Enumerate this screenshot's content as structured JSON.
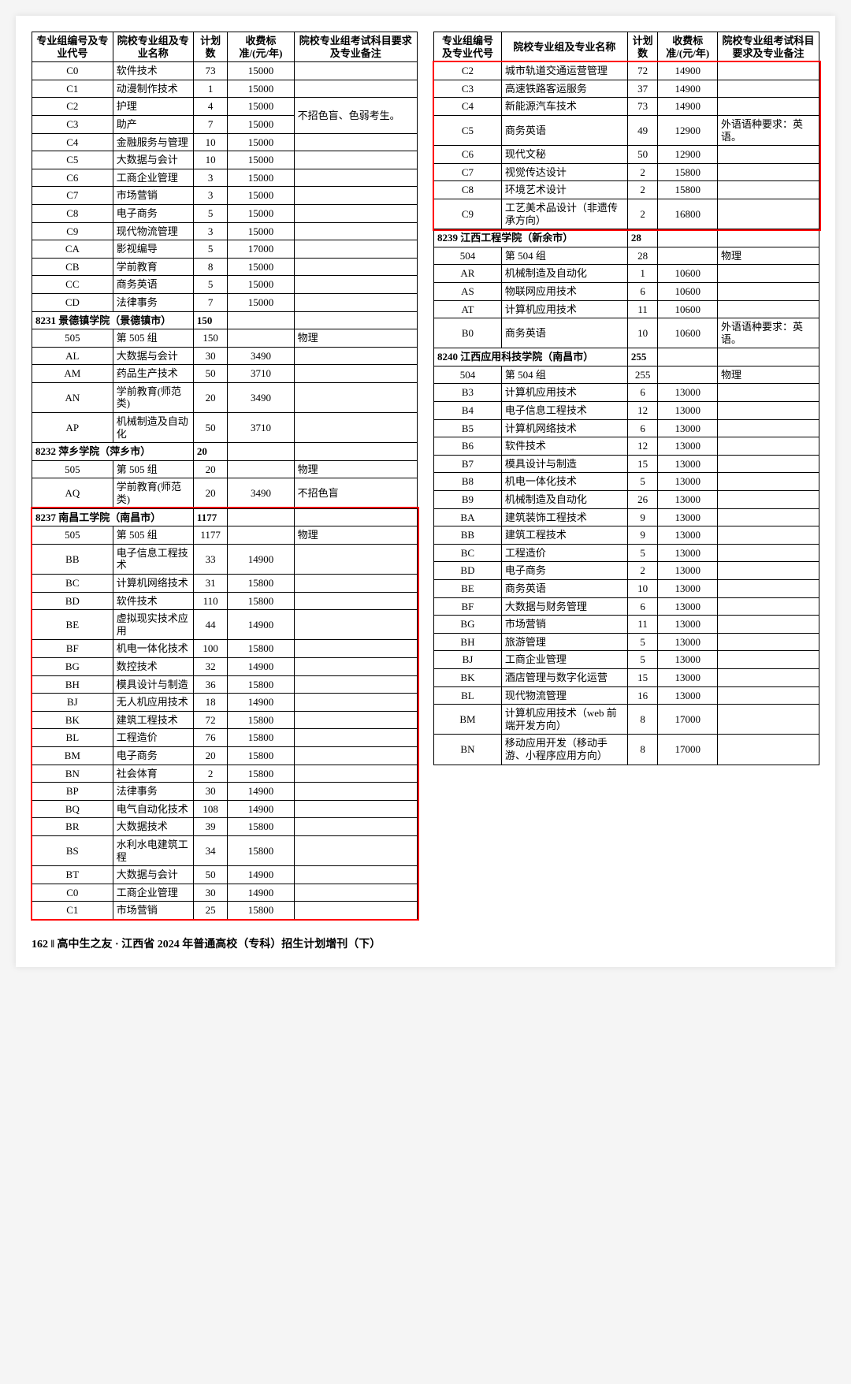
{
  "headers": {
    "c1": "专业组编号及专业代号",
    "c2": "院校专业组及专业名称",
    "c3": "计划数",
    "c4": "收费标准/(元/年)",
    "c5": "院校专业组考试科目要求及专业备注"
  },
  "footer": "162  ‖ 高中生之友 · 江西省 2024 年普通高校（专科）招生计划增刊（下）",
  "noteMerged": "不招色盲、色弱考生。",
  "leftRows": [
    {
      "code": "C0",
      "name": "软件技术",
      "plan": "73",
      "fee": "15000",
      "note": ""
    },
    {
      "code": "C1",
      "name": "动漫制作技术",
      "plan": "1",
      "fee": "15000",
      "note": ""
    },
    {
      "code": "C2",
      "name": "护理",
      "plan": "4",
      "fee": "15000",
      "note": "",
      "merge": "start"
    },
    {
      "code": "C3",
      "name": "助产",
      "plan": "7",
      "fee": "15000",
      "note": "",
      "merge": "end"
    },
    {
      "code": "C4",
      "name": "金融服务与管理",
      "plan": "10",
      "fee": "15000",
      "note": ""
    },
    {
      "code": "C5",
      "name": "大数据与会计",
      "plan": "10",
      "fee": "15000",
      "note": ""
    },
    {
      "code": "C6",
      "name": "工商企业管理",
      "plan": "3",
      "fee": "15000",
      "note": ""
    },
    {
      "code": "C7",
      "name": "市场营销",
      "plan": "3",
      "fee": "15000",
      "note": ""
    },
    {
      "code": "C8",
      "name": "电子商务",
      "plan": "5",
      "fee": "15000",
      "note": ""
    },
    {
      "code": "C9",
      "name": "现代物流管理",
      "plan": "3",
      "fee": "15000",
      "note": ""
    },
    {
      "code": "CA",
      "name": "影视编导",
      "plan": "5",
      "fee": "17000",
      "note": ""
    },
    {
      "code": "CB",
      "name": "学前教育",
      "plan": "8",
      "fee": "15000",
      "note": ""
    },
    {
      "code": "CC",
      "name": "商务英语",
      "plan": "5",
      "fee": "15000",
      "note": ""
    },
    {
      "code": "CD",
      "name": "法律事务",
      "plan": "7",
      "fee": "15000",
      "note": ""
    },
    {
      "school": "8231 景德镇学院（景德镇市）",
      "plan": "150"
    },
    {
      "code": "505",
      "name": "第 505 组",
      "plan": "150",
      "fee": "",
      "note": "物理"
    },
    {
      "code": "AL",
      "name": "大数据与会计",
      "plan": "30",
      "fee": "3490",
      "note": ""
    },
    {
      "code": "AM",
      "name": "药品生产技术",
      "plan": "50",
      "fee": "3710",
      "note": ""
    },
    {
      "code": "AN",
      "name": "学前教育(师范类)",
      "plan": "20",
      "fee": "3490",
      "note": ""
    },
    {
      "code": "AP",
      "name": "机械制造及自动化",
      "plan": "50",
      "fee": "3710",
      "note": ""
    },
    {
      "school": "8232 萍乡学院（萍乡市）",
      "plan": "20"
    },
    {
      "code": "505",
      "name": "第 505 组",
      "plan": "20",
      "fee": "",
      "note": "物理"
    },
    {
      "code": "AQ",
      "name": "学前教育(师范类)",
      "plan": "20",
      "fee": "3490",
      "note": "不招色盲"
    },
    {
      "school": "8237 南昌工学院（南昌市）",
      "plan": "1177",
      "hl": true
    },
    {
      "code": "505",
      "name": "第 505 组",
      "plan": "1177",
      "fee": "",
      "note": "物理",
      "hl": true
    },
    {
      "code": "BB",
      "name": "电子信息工程技术",
      "plan": "33",
      "fee": "14900",
      "note": "",
      "hl": true
    },
    {
      "code": "BC",
      "name": "计算机网络技术",
      "plan": "31",
      "fee": "15800",
      "note": "",
      "hl": true
    },
    {
      "code": "BD",
      "name": "软件技术",
      "plan": "110",
      "fee": "15800",
      "note": "",
      "hl": true
    },
    {
      "code": "BE",
      "name": "虚拟现实技术应用",
      "plan": "44",
      "fee": "14900",
      "note": "",
      "hl": true
    },
    {
      "code": "BF",
      "name": "机电一体化技术",
      "plan": "100",
      "fee": "15800",
      "note": "",
      "hl": true
    },
    {
      "code": "BG",
      "name": "数控技术",
      "plan": "32",
      "fee": "14900",
      "note": "",
      "hl": true
    },
    {
      "code": "BH",
      "name": "模具设计与制造",
      "plan": "36",
      "fee": "15800",
      "note": "",
      "hl": true
    },
    {
      "code": "BJ",
      "name": "无人机应用技术",
      "plan": "18",
      "fee": "14900",
      "note": "",
      "hl": true
    },
    {
      "code": "BK",
      "name": "建筑工程技术",
      "plan": "72",
      "fee": "15800",
      "note": "",
      "hl": true
    },
    {
      "code": "BL",
      "name": "工程造价",
      "plan": "76",
      "fee": "15800",
      "note": "",
      "hl": true
    },
    {
      "code": "BM",
      "name": "电子商务",
      "plan": "20",
      "fee": "15800",
      "note": "",
      "hl": true
    },
    {
      "code": "BN",
      "name": "社会体育",
      "plan": "2",
      "fee": "15800",
      "note": "",
      "hl": true
    },
    {
      "code": "BP",
      "name": "法律事务",
      "plan": "30",
      "fee": "14900",
      "note": "",
      "hl": true
    },
    {
      "code": "BQ",
      "name": "电气自动化技术",
      "plan": "108",
      "fee": "14900",
      "note": "",
      "hl": true
    },
    {
      "code": "BR",
      "name": "大数据技术",
      "plan": "39",
      "fee": "15800",
      "note": "",
      "hl": true
    },
    {
      "code": "BS",
      "name": "水利水电建筑工程",
      "plan": "34",
      "fee": "15800",
      "note": "",
      "hl": true
    },
    {
      "code": "BT",
      "name": "大数据与会计",
      "plan": "50",
      "fee": "14900",
      "note": "",
      "hl": true
    },
    {
      "code": "C0",
      "name": "工商企业管理",
      "plan": "30",
      "fee": "14900",
      "note": "",
      "hl": true
    },
    {
      "code": "C1",
      "name": "市场营销",
      "plan": "25",
      "fee": "15800",
      "note": "",
      "hl": true
    }
  ],
  "rightRows": [
    {
      "code": "C2",
      "name": "城市轨道交通运营管理",
      "plan": "72",
      "fee": "14900",
      "note": "",
      "hl": true
    },
    {
      "code": "C3",
      "name": "高速铁路客运服务",
      "plan": "37",
      "fee": "14900",
      "note": "",
      "hl": true
    },
    {
      "code": "C4",
      "name": "新能源汽车技术",
      "plan": "73",
      "fee": "14900",
      "note": "",
      "hl": true
    },
    {
      "code": "C5",
      "name": "商务英语",
      "plan": "49",
      "fee": "12900",
      "note": "外语语种要求：英语。",
      "hl": true
    },
    {
      "code": "C6",
      "name": "现代文秘",
      "plan": "50",
      "fee": "12900",
      "note": "",
      "hl": true
    },
    {
      "code": "C7",
      "name": "视觉传达设计",
      "plan": "2",
      "fee": "15800",
      "note": "",
      "hl": true
    },
    {
      "code": "C8",
      "name": "环境艺术设计",
      "plan": "2",
      "fee": "15800",
      "note": "",
      "hl": true
    },
    {
      "code": "C9",
      "name": "工艺美术品设计（非遗传承方向）",
      "plan": "2",
      "fee": "16800",
      "note": "",
      "hl": true
    },
    {
      "school": "8239 江西工程学院（新余市）",
      "plan": "28"
    },
    {
      "code": "504",
      "name": "第 504 组",
      "plan": "28",
      "fee": "",
      "note": "物理"
    },
    {
      "code": "AR",
      "name": "机械制造及自动化",
      "plan": "1",
      "fee": "10600",
      "note": ""
    },
    {
      "code": "AS",
      "name": "物联网应用技术",
      "plan": "6",
      "fee": "10600",
      "note": ""
    },
    {
      "code": "AT",
      "name": "计算机应用技术",
      "plan": "11",
      "fee": "10600",
      "note": ""
    },
    {
      "code": "B0",
      "name": "商务英语",
      "plan": "10",
      "fee": "10600",
      "note": "外语语种要求：英语。"
    },
    {
      "school": "8240 江西应用科技学院（南昌市）",
      "plan": "255"
    },
    {
      "code": "504",
      "name": "第 504 组",
      "plan": "255",
      "fee": "",
      "note": "物理"
    },
    {
      "code": "B3",
      "name": "计算机应用技术",
      "plan": "6",
      "fee": "13000",
      "note": ""
    },
    {
      "code": "B4",
      "name": "电子信息工程技术",
      "plan": "12",
      "fee": "13000",
      "note": ""
    },
    {
      "code": "B5",
      "name": "计算机网络技术",
      "plan": "6",
      "fee": "13000",
      "note": ""
    },
    {
      "code": "B6",
      "name": "软件技术",
      "plan": "12",
      "fee": "13000",
      "note": ""
    },
    {
      "code": "B7",
      "name": "模具设计与制造",
      "plan": "15",
      "fee": "13000",
      "note": ""
    },
    {
      "code": "B8",
      "name": "机电一体化技术",
      "plan": "5",
      "fee": "13000",
      "note": ""
    },
    {
      "code": "B9",
      "name": "机械制造及自动化",
      "plan": "26",
      "fee": "13000",
      "note": ""
    },
    {
      "code": "BA",
      "name": "建筑装饰工程技术",
      "plan": "9",
      "fee": "13000",
      "note": ""
    },
    {
      "code": "BB",
      "name": "建筑工程技术",
      "plan": "9",
      "fee": "13000",
      "note": ""
    },
    {
      "code": "BC",
      "name": "工程造价",
      "plan": "5",
      "fee": "13000",
      "note": ""
    },
    {
      "code": "BD",
      "name": "电子商务",
      "plan": "2",
      "fee": "13000",
      "note": ""
    },
    {
      "code": "BE",
      "name": "商务英语",
      "plan": "10",
      "fee": "13000",
      "note": ""
    },
    {
      "code": "BF",
      "name": "大数据与财务管理",
      "plan": "6",
      "fee": "13000",
      "note": ""
    },
    {
      "code": "BG",
      "name": "市场营销",
      "plan": "11",
      "fee": "13000",
      "note": ""
    },
    {
      "code": "BH",
      "name": "旅游管理",
      "plan": "5",
      "fee": "13000",
      "note": ""
    },
    {
      "code": "BJ",
      "name": "工商企业管理",
      "plan": "5",
      "fee": "13000",
      "note": ""
    },
    {
      "code": "BK",
      "name": "酒店管理与数字化运营",
      "plan": "15",
      "fee": "13000",
      "note": ""
    },
    {
      "code": "BL",
      "name": "现代物流管理",
      "plan": "16",
      "fee": "13000",
      "note": ""
    },
    {
      "code": "BM",
      "name": "计算机应用技术（web 前端开发方向）",
      "plan": "8",
      "fee": "17000",
      "note": ""
    },
    {
      "code": "BN",
      "name": "移动应用开发（移动手游、小程序应用方向）",
      "plan": "8",
      "fee": "17000",
      "note": ""
    }
  ],
  "colors": {
    "highlight": "#ff0000",
    "border": "#000000"
  }
}
